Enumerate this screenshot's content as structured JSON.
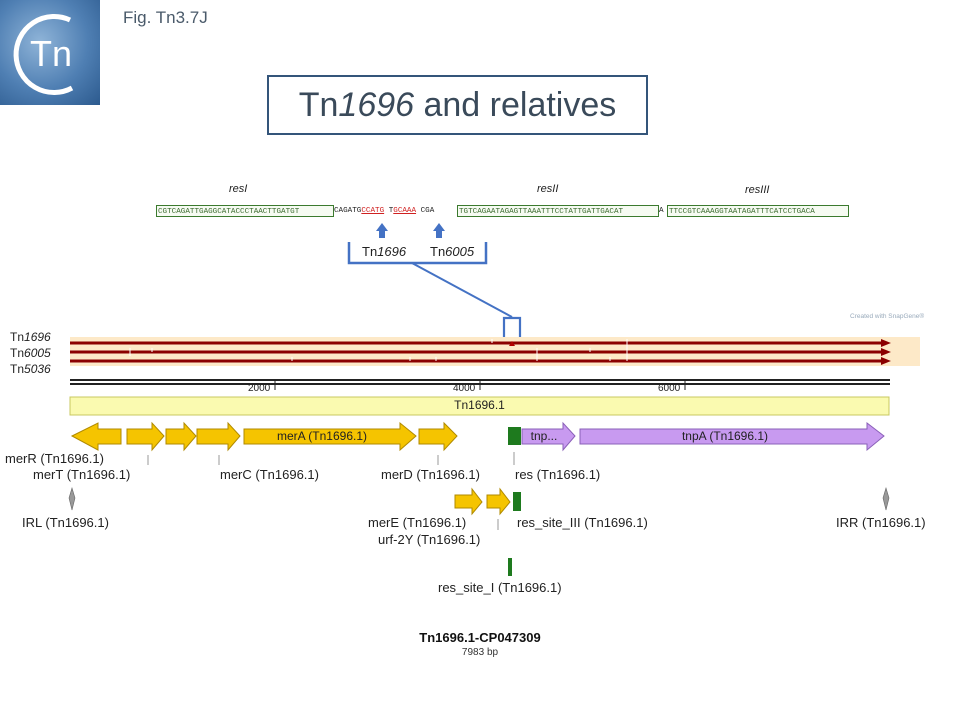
{
  "logo": {
    "text": "Tn"
  },
  "fig_label": "Fig. Tn3.7J",
  "title": {
    "prefix": "Tn",
    "italic": "1696",
    "suffix": " and relatives"
  },
  "res_sites": {
    "labels": [
      "resI",
      "resII",
      "resIII"
    ],
    "seq1": "CGTCAGATTGAGGCATACCCTAACTTGATGT",
    "link1": "CAGATG",
    "red1": "CCATG",
    "mid": " T",
    "red2": "GCAAA",
    "link2": " CGA",
    "seq2": "TGTCAGAATAGAGTTAAATTTCCTATTGATTGACAT",
    "link3": "A",
    "seq3": "TTCCGTCAAAGGTAATAGATTTCATCCTGACA"
  },
  "insertion_labels": [
    {
      "prefix": "Tn",
      "italic": "1696"
    },
    {
      "prefix": "Tn",
      "italic": "6005"
    }
  ],
  "track_labels": [
    {
      "prefix": "Tn",
      "italic": "1696"
    },
    {
      "prefix": "Tn",
      "italic": "6005"
    },
    {
      "prefix": "Tn",
      "italic": "5036"
    }
  ],
  "snapgene_credit": "Created with SnapGene®",
  "ruler_ticks": [
    "2000",
    "4000",
    "6000"
  ],
  "backbone_label": "Tn1696.1",
  "features": {
    "merA": "merA (Tn1696.1)",
    "tnp": "tnp...",
    "tnpA": "tnpA (Tn1696.1)"
  },
  "annotations": {
    "merR": "merR (Tn1696.1)",
    "merT": "merT (Tn1696.1)",
    "merC": "merC (Tn1696.1)",
    "merD": "merD (Tn1696.1)",
    "res": "res (Tn1696.1)",
    "IRL": "IRL (Tn1696.1)",
    "merE": "merE (Tn1696.1)",
    "urf2Y": "urf-2Y (Tn1696.1)",
    "res_site_III": "res_site_III (Tn1696.1)",
    "IRR": "IRR (Tn1696.1)",
    "res_site_I": "res_site_I (Tn1696.1)"
  },
  "footer": {
    "name": "Tn1696.1-CP047309",
    "length": "7983 bp"
  },
  "colors": {
    "gene_yellow": "#f5c400",
    "tnp_purple": "#c89af0",
    "res_green": "#1e7a1e",
    "track_red": "#8b0000",
    "track_bg": "#fde9c8",
    "backbone": "#fafab0",
    "frame_blue": "#4472c4"
  }
}
